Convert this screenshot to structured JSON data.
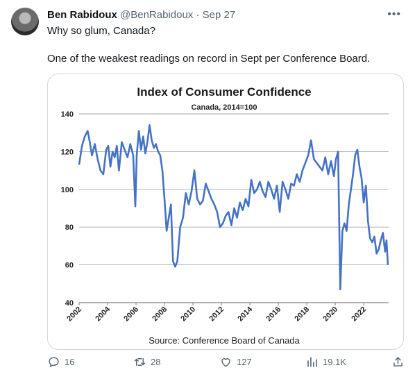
{
  "tweet": {
    "author_name": "Ben Rabidoux",
    "handle": "@BenRabidoux",
    "separator": "·",
    "date": "Sep 27",
    "text_line1": "Why so glum, Canada?",
    "text_line2": "One of the weakest readings on record in Sept per Conference Board.",
    "more_icon": "more-dots-icon"
  },
  "actions": {
    "replies": "16",
    "retweets": "28",
    "likes": "127",
    "views": "19.1K"
  },
  "chart_data": {
    "type": "line",
    "title": "Index of Consumer Confidence",
    "subtitle": "Canada, 2014=100",
    "source": "Source: Conference Board of Canada",
    "ylim": [
      40,
      140
    ],
    "yticks": [
      40,
      60,
      80,
      100,
      120,
      140
    ],
    "xlim": [
      2002,
      2023.75
    ],
    "xticks": [
      "2002",
      "2004",
      "2006",
      "2008",
      "2010",
      "2012",
      "2014",
      "2016",
      "2018",
      "2020",
      "2022"
    ],
    "grid": true,
    "line_color": "#4472c4",
    "x": [
      2002.0,
      2002.2,
      2002.4,
      2002.6,
      2002.75,
      2002.9,
      2003.1,
      2003.3,
      2003.5,
      2003.7,
      2003.9,
      2004.05,
      2004.2,
      2004.35,
      2004.5,
      2004.65,
      2004.8,
      2005.0,
      2005.2,
      2005.4,
      2005.6,
      2005.8,
      2005.95,
      2006.05,
      2006.2,
      2006.35,
      2006.5,
      2006.65,
      2006.8,
      2006.95,
      2007.1,
      2007.25,
      2007.4,
      2007.55,
      2007.7,
      2007.85,
      2008.0,
      2008.15,
      2008.3,
      2008.45,
      2008.6,
      2008.75,
      2008.9,
      2009.1,
      2009.3,
      2009.5,
      2009.7,
      2009.9,
      2010.1,
      2010.3,
      2010.5,
      2010.7,
      2010.9,
      2011.1,
      2011.3,
      2011.5,
      2011.7,
      2011.9,
      2012.1,
      2012.3,
      2012.5,
      2012.7,
      2012.9,
      2013.1,
      2013.3,
      2013.5,
      2013.7,
      2013.9,
      2014.1,
      2014.3,
      2014.5,
      2014.7,
      2014.9,
      2015.1,
      2015.3,
      2015.5,
      2015.7,
      2015.9,
      2016.1,
      2016.3,
      2016.5,
      2016.7,
      2016.9,
      2017.1,
      2017.3,
      2017.5,
      2017.7,
      2017.9,
      2018.1,
      2018.3,
      2018.5,
      2018.7,
      2018.9,
      2019.1,
      2019.3,
      2019.5,
      2019.7,
      2019.9,
      2020.05,
      2020.2,
      2020.35,
      2020.5,
      2020.65,
      2020.8,
      2020.95,
      2021.1,
      2021.25,
      2021.4,
      2021.55,
      2021.7,
      2021.85,
      2022.0,
      2022.15,
      2022.3,
      2022.45,
      2022.6,
      2022.75,
      2022.9,
      2023.05,
      2023.2,
      2023.35,
      2023.5,
      2023.6,
      2023.7
    ],
    "values": [
      113,
      123,
      128,
      131,
      125,
      118,
      124,
      116,
      110,
      108,
      121,
      123,
      112,
      120,
      117,
      123,
      110,
      125,
      121,
      117,
      124,
      118,
      91,
      118,
      131,
      121,
      128,
      119,
      125,
      134,
      126,
      122,
      124,
      120,
      118,
      110,
      95,
      78,
      85,
      92,
      62,
      59,
      62,
      80,
      85,
      98,
      92,
      99,
      110,
      95,
      92,
      94,
      103,
      99,
      95,
      92,
      88,
      80,
      82,
      86,
      88,
      81,
      90,
      85,
      93,
      89,
      95,
      91,
      105,
      98,
      100,
      104,
      99,
      96,
      104,
      100,
      95,
      102,
      88,
      104,
      100,
      95,
      103,
      102,
      108,
      104,
      110,
      114,
      118,
      126,
      116,
      114,
      112,
      110,
      117,
      108,
      115,
      107,
      116,
      120,
      47,
      78,
      82,
      78,
      92,
      100,
      108,
      118,
      121,
      112,
      106,
      93,
      102,
      83,
      74,
      72,
      75,
      66,
      68,
      73,
      77,
      67,
      73,
      60
    ]
  }
}
